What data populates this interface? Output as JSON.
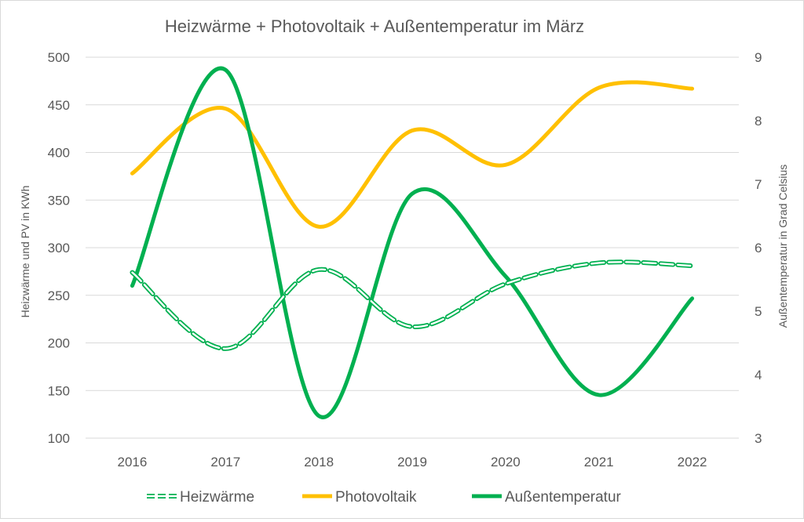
{
  "chart_data": {
    "type": "line",
    "title": "Heizwärme +    Photovoltaik + Außentemperatur im März",
    "categories": [
      "2016",
      "2017",
      "2018",
      "2019",
      "2020",
      "2021",
      "2022"
    ],
    "ylabel": "Heizwärme und PV in KWh",
    "y2label": "Außentemperatur in Grad Celsius",
    "ylim": [
      100,
      500
    ],
    "y2lim": [
      3,
      9
    ],
    "yticks": [
      100,
      150,
      200,
      250,
      300,
      350,
      400,
      450,
      500
    ],
    "y2ticks": [
      3,
      4,
      5,
      6,
      7,
      8,
      9
    ],
    "grid": true,
    "smooth": true,
    "legend_position": "bottom",
    "series": [
      {
        "name": "Heizwärme",
        "axis": "left",
        "style": "dashed",
        "color": "#00b050",
        "values": [
          274,
          194,
          277,
          217,
          262,
          284,
          281
        ]
      },
      {
        "name": "Photovoltaik",
        "axis": "left",
        "style": "solid",
        "color": "#ffc000",
        "values": [
          378,
          446,
          322,
          423,
          387,
          468,
          467
        ]
      },
      {
        "name": "Außentemperatur",
        "axis": "right",
        "style": "solid",
        "color": "#00b050",
        "values": [
          5.4,
          8.8,
          3.35,
          6.85,
          5.55,
          3.68,
          5.2
        ]
      }
    ]
  }
}
